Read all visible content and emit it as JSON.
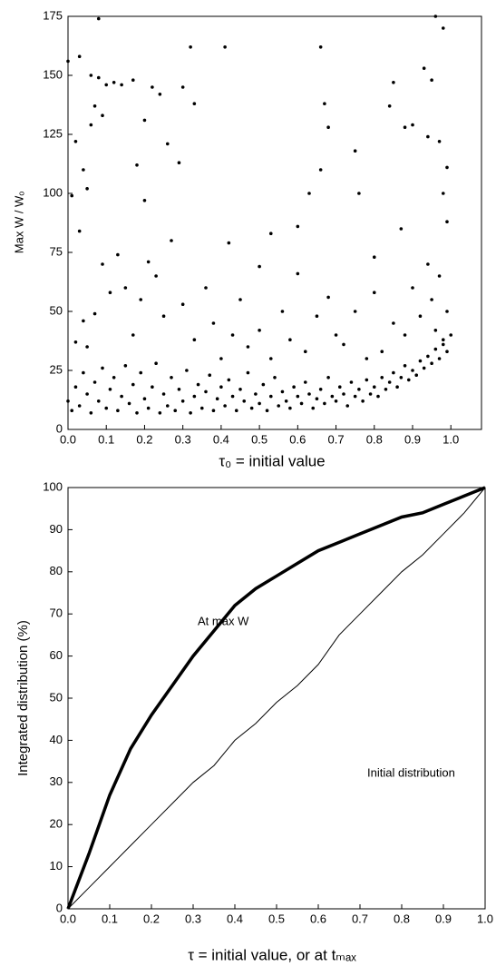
{
  "chart_data": [
    {
      "type": "scatter",
      "x_label": "τ₀  =  initial value",
      "y_label": "Max W / Wₒ",
      "color": "#000000",
      "xlim": [
        0,
        1.08
      ],
      "ylim": [
        0,
        175
      ],
      "xticks": [
        {
          "value": 0,
          "label": "0.0"
        },
        {
          "value": 0.1,
          "label": "0.1"
        },
        {
          "value": 0.2,
          "label": "0.2"
        },
        {
          "value": 0.3,
          "label": "0.3"
        },
        {
          "value": 0.4,
          "label": "0.4"
        },
        {
          "value": 0.5,
          "label": "0.5"
        },
        {
          "value": 0.6,
          "label": "0.6"
        },
        {
          "value": 0.7,
          "label": "0.7"
        },
        {
          "value": 0.8,
          "label": "0.8"
        },
        {
          "value": 0.9,
          "label": "0.9"
        },
        {
          "value": 1,
          "label": "1.0"
        }
      ],
      "yticks": [
        0,
        25,
        50,
        75,
        100,
        125,
        150,
        175
      ],
      "x": [
        0.0,
        0.01,
        0.02,
        0.03,
        0.03,
        0.04,
        0.05,
        0.06,
        0.06,
        0.07,
        0.08,
        0.08,
        0.09,
        0.1,
        0.12,
        0.14,
        0.17,
        0.18,
        0.2,
        0.2,
        0.22,
        0.24,
        0.26,
        0.29,
        0.3,
        0.32,
        0.33,
        0.41,
        0.42,
        0.5,
        0.53,
        0.6,
        0.63,
        0.66,
        0.66,
        0.67,
        0.68,
        0.75,
        0.76,
        0.8,
        0.84,
        0.85,
        0.88,
        0.9,
        0.93,
        0.94,
        0.95,
        0.96,
        0.98,
        0.99,
        0.99,
        0.98,
        0.97,
        0.02,
        0.04,
        0.05,
        0.07,
        0.09,
        0.11,
        0.13,
        0.15,
        0.17,
        0.19,
        0.21,
        0.23,
        0.25,
        0.27,
        0.3,
        0.33,
        0.36,
        0.38,
        0.4,
        0.43,
        0.45,
        0.47,
        0.5,
        0.53,
        0.56,
        0.58,
        0.6,
        0.62,
        0.65,
        0.68,
        0.7,
        0.72,
        0.75,
        0.78,
        0.8,
        0.82,
        0.85,
        0.87,
        0.88,
        0.9,
        0.92,
        0.94,
        0.95,
        0.96,
        0.97,
        0.98,
        0.99,
        0.0,
        0.01,
        0.02,
        0.03,
        0.04,
        0.05,
        0.06,
        0.07,
        0.08,
        0.09,
        0.1,
        0.11,
        0.12,
        0.13,
        0.14,
        0.15,
        0.16,
        0.17,
        0.18,
        0.19,
        0.2,
        0.21,
        0.22,
        0.23,
        0.24,
        0.25,
        0.26,
        0.27,
        0.28,
        0.29,
        0.3,
        0.31,
        0.32,
        0.33,
        0.34,
        0.35,
        0.36,
        0.37,
        0.38,
        0.39,
        0.4,
        0.41,
        0.42,
        0.43,
        0.44,
        0.45,
        0.46,
        0.47,
        0.48,
        0.49,
        0.5,
        0.51,
        0.52,
        0.53,
        0.54,
        0.55,
        0.56,
        0.57,
        0.58,
        0.59,
        0.6,
        0.61,
        0.62,
        0.63,
        0.64,
        0.65,
        0.66,
        0.67,
        0.68,
        0.69,
        0.7,
        0.71,
        0.72,
        0.73,
        0.74,
        0.75,
        0.76,
        0.77,
        0.78,
        0.79,
        0.8,
        0.81,
        0.82,
        0.83,
        0.84,
        0.85,
        0.86,
        0.87,
        0.88,
        0.89,
        0.9,
        0.91,
        0.92,
        0.93,
        0.94,
        0.95,
        0.96,
        0.97,
        0.98,
        0.99,
        1.0
      ],
      "y": [
        156,
        99,
        122,
        158,
        84,
        110,
        102,
        150,
        129,
        137,
        174,
        149,
        133,
        146,
        147,
        146,
        148,
        112,
        131,
        97,
        145,
        142,
        121,
        113,
        145,
        162,
        138,
        162,
        79,
        69,
        83,
        86,
        100,
        162,
        110,
        138,
        128,
        118,
        100,
        73,
        137,
        147,
        128,
        129,
        153,
        124,
        148,
        175,
        170,
        111,
        88,
        100,
        122,
        37,
        46,
        35,
        49,
        70,
        58,
        74,
        60,
        40,
        55,
        71,
        65,
        48,
        80,
        53,
        38,
        60,
        45,
        30,
        40,
        55,
        35,
        42,
        30,
        50,
        38,
        66,
        33,
        48,
        56,
        40,
        36,
        50,
        30,
        58,
        33,
        45,
        85,
        40,
        60,
        48,
        70,
        55,
        42,
        65,
        38,
        50,
        12,
        8,
        18,
        10,
        24,
        15,
        7,
        20,
        12,
        26,
        9,
        17,
        22,
        8,
        14,
        27,
        11,
        19,
        7,
        24,
        13,
        9,
        18,
        28,
        7,
        15,
        10,
        22,
        8,
        17,
        12,
        25,
        7,
        14,
        19,
        9,
        16,
        23,
        8,
        13,
        18,
        10,
        21,
        14,
        8,
        17,
        12,
        24,
        9,
        15,
        11,
        19,
        8,
        14,
        22,
        10,
        16,
        12,
        9,
        18,
        14,
        11,
        20,
        15,
        9,
        13,
        17,
        11,
        22,
        14,
        12,
        18,
        15,
        10,
        20,
        14,
        17,
        12,
        21,
        15,
        18,
        14,
        22,
        17,
        20,
        24,
        18,
        22,
        27,
        21,
        25,
        23,
        29,
        26,
        31,
        28,
        34,
        30,
        36,
        33,
        40
      ]
    },
    {
      "type": "line",
      "x_label": "τ   =  initial value, or at tₘₐₓ",
      "y_label": "Integrated distribution (%)",
      "annotations": [
        "At max W",
        "Initial distribution"
      ],
      "xlim": [
        0,
        1
      ],
      "ylim": [
        0,
        100
      ],
      "xticks": [
        {
          "value": 0,
          "label": "0.0"
        },
        {
          "value": 0.1,
          "label": "0.1"
        },
        {
          "value": 0.2,
          "label": "0.2"
        },
        {
          "value": 0.3,
          "label": "0.3"
        },
        {
          "value": 0.4,
          "label": "0.4"
        },
        {
          "value": 0.5,
          "label": "0.5"
        },
        {
          "value": 0.6,
          "label": "0.6"
        },
        {
          "value": 0.7,
          "label": "0.7"
        },
        {
          "value": 0.8,
          "label": "0.8"
        },
        {
          "value": 0.9,
          "label": "0.9"
        },
        {
          "value": 1,
          "label": "1.0"
        }
      ],
      "yticks": [
        0,
        10,
        20,
        30,
        40,
        50,
        60,
        70,
        80,
        90,
        100
      ],
      "x": [
        0,
        0.05,
        0.1,
        0.15,
        0.2,
        0.25,
        0.3,
        0.35,
        0.4,
        0.45,
        0.5,
        0.55,
        0.6,
        0.65,
        0.7,
        0.75,
        0.8,
        0.85,
        0.9,
        0.95,
        1
      ],
      "series": [
        {
          "name": "At max W",
          "color": "#000000",
          "values": [
            0,
            13,
            27,
            38,
            46,
            53,
            60,
            66,
            72,
            76,
            79,
            82,
            85,
            87,
            89,
            91,
            93,
            94,
            96,
            98,
            100
          ]
        },
        {
          "name": "Initial distribution",
          "color": "#000000",
          "values": [
            0,
            5,
            10,
            15,
            20,
            25,
            30,
            34,
            40,
            44,
            49,
            53,
            58,
            65,
            70,
            75,
            80,
            84,
            89,
            94,
            100
          ]
        }
      ]
    }
  ]
}
